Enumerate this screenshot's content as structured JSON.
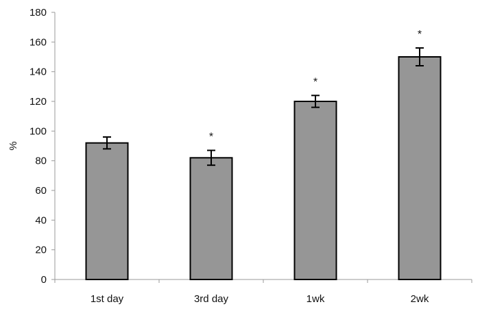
{
  "chart_data": {
    "type": "bar",
    "categories": [
      "1st day",
      "3rd day",
      "1wk",
      "2wk"
    ],
    "values": [
      92,
      82,
      120,
      150
    ],
    "errors": [
      4,
      5,
      4,
      6
    ],
    "annotations": [
      "",
      "*",
      "*",
      "*"
    ],
    "title": "",
    "xlabel": "",
    "ylabel": "%",
    "ylim": [
      0,
      180
    ],
    "yticks": [
      0,
      20,
      40,
      60,
      80,
      100,
      120,
      140,
      160,
      180
    ],
    "grid": false,
    "legend": "none",
    "bar_color": "#969696",
    "bar_edge_color": "#000000"
  }
}
